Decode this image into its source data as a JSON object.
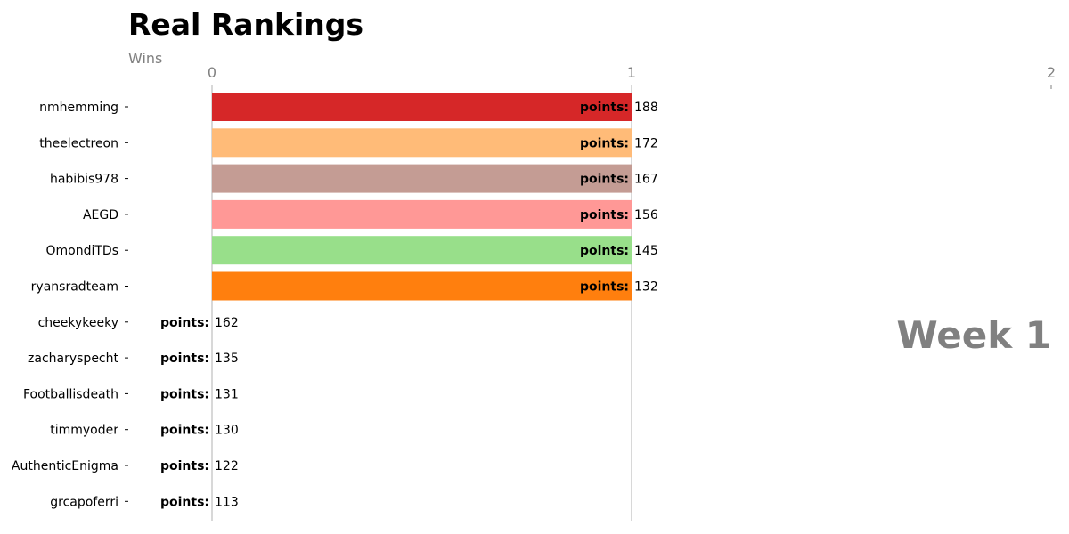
{
  "chart_data": {
    "type": "bar",
    "orientation": "horizontal",
    "title": "Real Rankings",
    "subtitle": "Wins",
    "xlim": [
      0,
      2
    ],
    "xticks": [
      "0",
      "1",
      "2"
    ],
    "annotation": "Week 1",
    "value_label_prefix": "points:",
    "grid": "vertical lines at x ticks",
    "categories": [
      "nmhemming",
      "theelectreon",
      "habibis978",
      "AEGD",
      "OmondiTDs",
      "ryansradteam",
      "cheekykeeky",
      "zacharyspecht",
      "Footballisdeath",
      "timmyoder",
      "AuthenticEnigma",
      "grcapoferri"
    ],
    "values": [
      1,
      1,
      1,
      1,
      1,
      1,
      0,
      0,
      0,
      0,
      0,
      0
    ],
    "points": [
      188,
      172,
      167,
      156,
      145,
      132,
      162,
      135,
      131,
      130,
      122,
      113
    ],
    "colors": [
      "#d62728",
      "#ffbb78",
      "#c49c94",
      "#ff9896",
      "#98df8a",
      "#ff7f0e",
      "#1f77b4",
      "#aec7e8",
      "#2ca02c",
      "#9467bd",
      "#8c564b",
      "#e377c2"
    ]
  }
}
